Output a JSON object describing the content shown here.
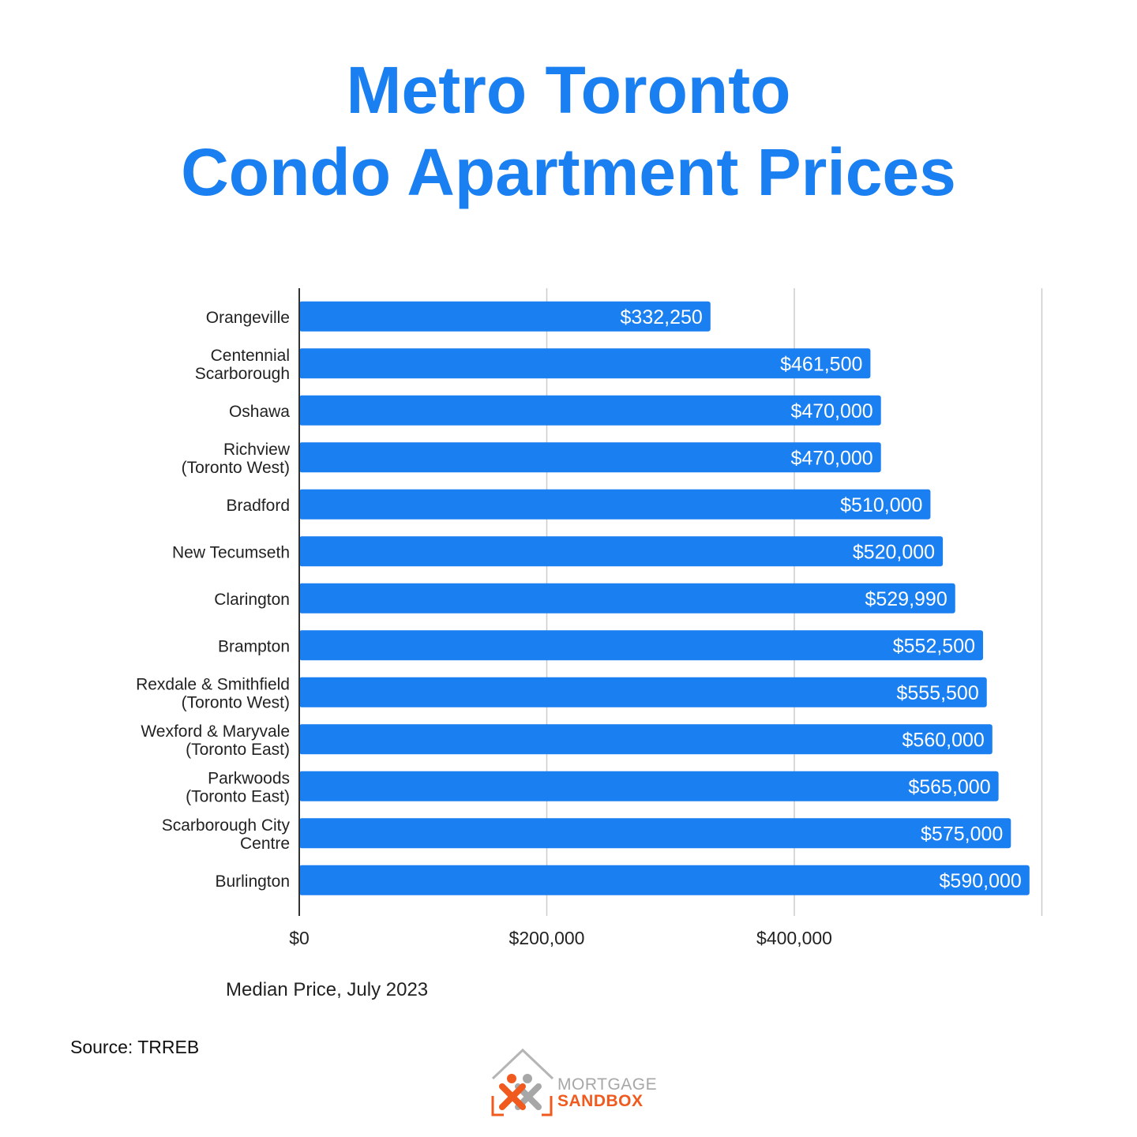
{
  "title": {
    "line1": "Metro Toronto",
    "line2": "Condo Apartment Prices"
  },
  "source": "Source: TRREB",
  "logo": {
    "line1": "MORTGAGE",
    "line2": "SANDBOX"
  },
  "colors": {
    "title": "#1a7ff0",
    "bar": "#1a7ff0",
    "grid": "#cccccc",
    "axis": "#333333"
  },
  "chart_data": {
    "type": "bar",
    "orientation": "horizontal",
    "categories": [
      "Orangeville",
      "Centennial Scarborough",
      "Oshawa",
      "Richview (Toronto West)",
      "Bradford",
      "New Tecumseth",
      "Clarington",
      "Brampton",
      "Rexdale & Smithfield (Toronto West)",
      "Wexford & Maryvale (Toronto East)",
      "Parkwoods (Toronto East)",
      "Scarborough City Centre",
      "Burlington"
    ],
    "category_lines": [
      [
        "Orangeville"
      ],
      [
        "Centennial",
        "Scarborough"
      ],
      [
        "Oshawa"
      ],
      [
        "Richview",
        "(Toronto West)"
      ],
      [
        "Bradford"
      ],
      [
        "New Tecumseth"
      ],
      [
        "Clarington"
      ],
      [
        "Brampton"
      ],
      [
        "Rexdale & Smithfield",
        "(Toronto West)"
      ],
      [
        "Wexford & Maryvale",
        "(Toronto East)"
      ],
      [
        "Parkwoods",
        "(Toronto East)"
      ],
      [
        "Scarborough City",
        "Centre"
      ],
      [
        "Burlington"
      ]
    ],
    "values": [
      332250,
      461500,
      470000,
      470000,
      510000,
      520000,
      529990,
      552500,
      555500,
      560000,
      565000,
      575000,
      590000
    ],
    "value_labels": [
      "$332,250",
      "$461,500",
      "$470,000",
      "$470,000",
      "$510,000",
      "$520,000",
      "$529,990",
      "$552,500",
      "$555,500",
      "$560,000",
      "$565,000",
      "$575,000",
      "$590,000"
    ],
    "x_ticks": [
      0,
      200000,
      400000
    ],
    "x_tick_labels": [
      "$0",
      "$200,000",
      "$400,000"
    ],
    "xlabel": "Median Price, July 2023",
    "xlim": [
      0,
      600000
    ],
    "grid": true
  }
}
